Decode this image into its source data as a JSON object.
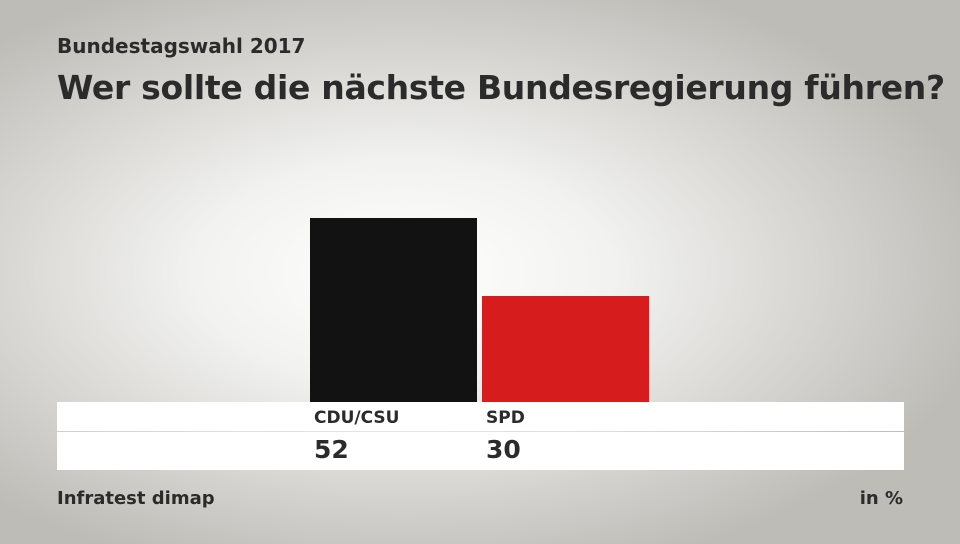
{
  "header": {
    "subtitle": "Bundestagswahl 2017",
    "title": "Wer sollte die nächste Bundesregierung führen?"
  },
  "footer": {
    "source": "Infratest dimap",
    "unit": "in %"
  },
  "chart_data": {
    "type": "bar",
    "title": "Wer sollte die nächste Bundesregierung führen?",
    "subtitle": "Bundestagswahl 2017",
    "categories": [
      "CDU/CSU",
      "SPD"
    ],
    "values": [
      52,
      30
    ],
    "colors": [
      "#121212",
      "#d61c1c"
    ],
    "ylabel": "in %",
    "ylim": [
      0,
      70
    ]
  }
}
